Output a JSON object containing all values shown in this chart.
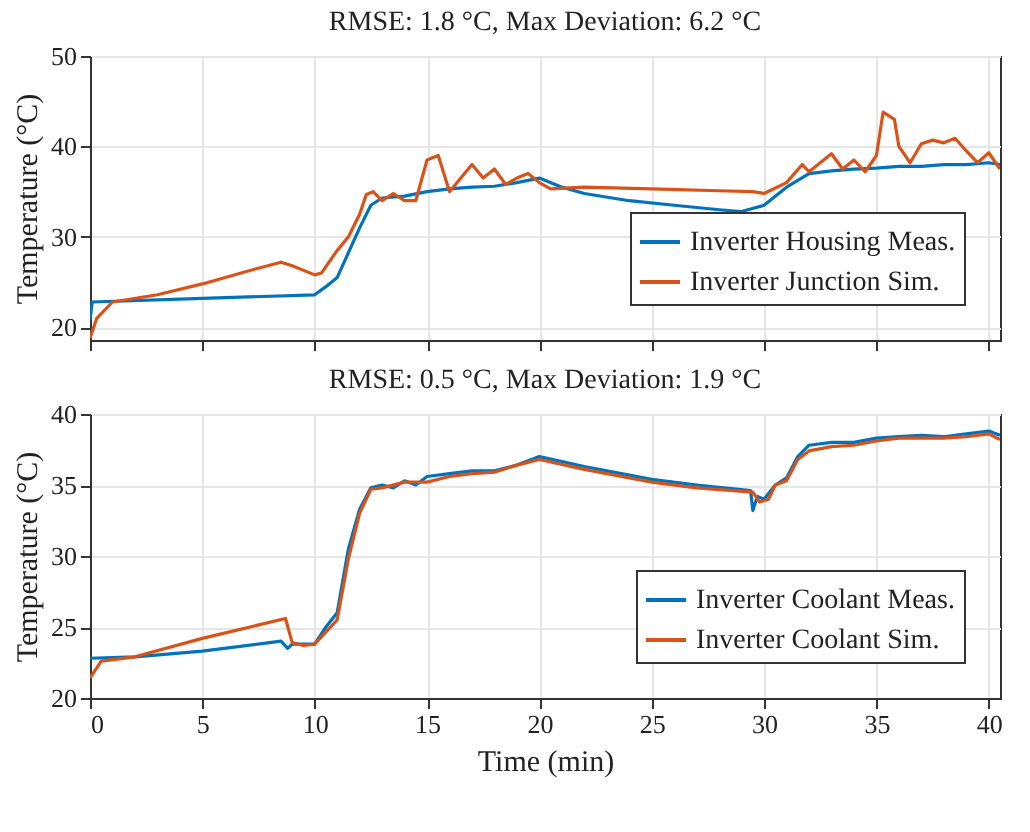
{
  "chart_data": [
    {
      "type": "line",
      "title": "RMSE: 1.8 °C, Max Deviation: 6.2 °C",
      "ylabel": "Temperature (°C)",
      "xlim": [
        0,
        40.5
      ],
      "xticks": [
        0,
        5,
        10,
        15,
        20,
        25,
        30,
        35,
        40
      ],
      "ylim": [
        18.6,
        50
      ],
      "yticks": [
        20,
        30,
        40,
        50
      ],
      "grid": true,
      "legend": "bottom right",
      "tick_labels": "y",
      "line_style": "solid",
      "marker": "none",
      "series": [
        {
          "name": "Inverter Housing Meas.",
          "color": "#0072bd",
          "x": [
            0,
            0.1,
            5,
            10,
            10.5,
            11,
            12,
            12.5,
            13,
            14,
            15,
            16,
            17,
            18,
            19,
            20,
            21,
            22,
            24,
            26,
            28,
            29,
            30,
            31,
            32,
            33,
            34,
            35,
            36,
            37,
            38,
            39,
            40,
            40.5
          ],
          "values": [
            20.8,
            22.8,
            23.2,
            23.6,
            24.5,
            25.5,
            31,
            33.5,
            34.3,
            34.5,
            35,
            35.3,
            35.5,
            35.6,
            36,
            36.5,
            35.5,
            34.8,
            34,
            33.5,
            33,
            32.8,
            33.5,
            35.5,
            37,
            37.3,
            37.5,
            37.6,
            37.8,
            37.8,
            38,
            38,
            38.2,
            38
          ]
        },
        {
          "name": "Inverter Junction Sim.",
          "color": "#d95319",
          "x": [
            0,
            0.3,
            1,
            3,
            5,
            7,
            8.5,
            9,
            10,
            10.3,
            11,
            11.5,
            12,
            12.3,
            12.6,
            13,
            13.5,
            14,
            14.5,
            15,
            15.5,
            16,
            17,
            17.5,
            18,
            18.5,
            19,
            19.5,
            20,
            20.5,
            22,
            25,
            28,
            29.5,
            30,
            31,
            31.7,
            32,
            33,
            33.5,
            34,
            34.5,
            35,
            35.3,
            35.8,
            36,
            36.5,
            37,
            37.5,
            38,
            38.5,
            39,
            39.5,
            40,
            40.5
          ],
          "values": [
            18.8,
            21,
            22.8,
            23.6,
            24.8,
            26.2,
            27.2,
            26.8,
            25.8,
            26,
            28.5,
            30,
            32.5,
            34.7,
            35,
            34,
            34.8,
            34,
            34,
            38.5,
            39,
            35,
            38,
            36.5,
            37.5,
            35.8,
            36.5,
            37,
            36,
            35.3,
            35.5,
            35.3,
            35.1,
            35,
            34.8,
            36,
            38,
            37.2,
            39.2,
            37.5,
            38.5,
            37.2,
            39,
            43.8,
            43,
            40,
            38.2,
            40.3,
            40.7,
            40.4,
            40.9,
            39.5,
            38.2,
            39.3,
            37.5
          ]
        }
      ]
    },
    {
      "type": "line",
      "title": "RMSE: 0.5 °C, Max Deviation: 1.9 °C",
      "xlabel": "Time (min)",
      "ylabel": "Temperature (°C)",
      "xlim": [
        0,
        40.5
      ],
      "xticks": [
        0,
        5,
        10,
        15,
        20,
        25,
        30,
        35,
        40
      ],
      "ylim": [
        20,
        40
      ],
      "yticks": [
        20,
        25,
        30,
        35,
        40
      ],
      "grid": true,
      "legend": "bottom right",
      "line_style": "solid",
      "marker": "none",
      "series": [
        {
          "name": "Inverter Coolant Meas.",
          "color": "#0072bd",
          "x": [
            0,
            2,
            5,
            8.5,
            8.8,
            9,
            10,
            10.5,
            11,
            11.5,
            12,
            12.5,
            13,
            13.5,
            14,
            14.5,
            15,
            16,
            17,
            18,
            19,
            20,
            22,
            25,
            27,
            29.4,
            29.5,
            29.7,
            30,
            30.5,
            31,
            31.5,
            32,
            33,
            34,
            35,
            36,
            37,
            38,
            39,
            40,
            40.5
          ],
          "values": [
            22.8,
            22.9,
            23.3,
            24,
            23.5,
            23.8,
            23.8,
            25,
            26,
            30.5,
            33.3,
            34.8,
            35,
            34.8,
            35.3,
            35,
            35.6,
            35.8,
            36,
            36,
            36.4,
            37,
            36.3,
            35.4,
            35,
            34.6,
            33.2,
            34.2,
            34,
            35,
            35.5,
            37,
            37.8,
            38,
            38,
            38.3,
            38.4,
            38.5,
            38.4,
            38.6,
            38.8,
            38.5
          ]
        },
        {
          "name": "Inverter Coolant Sim.",
          "color": "#d95319",
          "x": [
            0,
            0.5,
            2,
            5,
            8.7,
            9,
            9.5,
            10,
            11,
            11.5,
            12,
            12.5,
            13,
            14,
            15,
            16,
            17,
            18,
            19,
            20,
            22,
            25,
            27,
            29.5,
            29.8,
            30.2,
            30.5,
            31,
            31.5,
            32,
            33,
            34,
            35,
            36,
            37,
            38,
            39,
            40,
            40.5
          ],
          "values": [
            21.4,
            22.6,
            22.9,
            24.2,
            25.6,
            23.9,
            23.7,
            23.8,
            25.5,
            29.8,
            33,
            34.7,
            34.8,
            35.2,
            35.2,
            35.6,
            35.8,
            35.9,
            36.4,
            36.8,
            36.1,
            35.2,
            34.8,
            34.5,
            33.8,
            34,
            35,
            35.3,
            36.8,
            37.4,
            37.7,
            37.8,
            38.1,
            38.3,
            38.3,
            38.3,
            38.4,
            38.6,
            38.2
          ]
        }
      ]
    }
  ]
}
